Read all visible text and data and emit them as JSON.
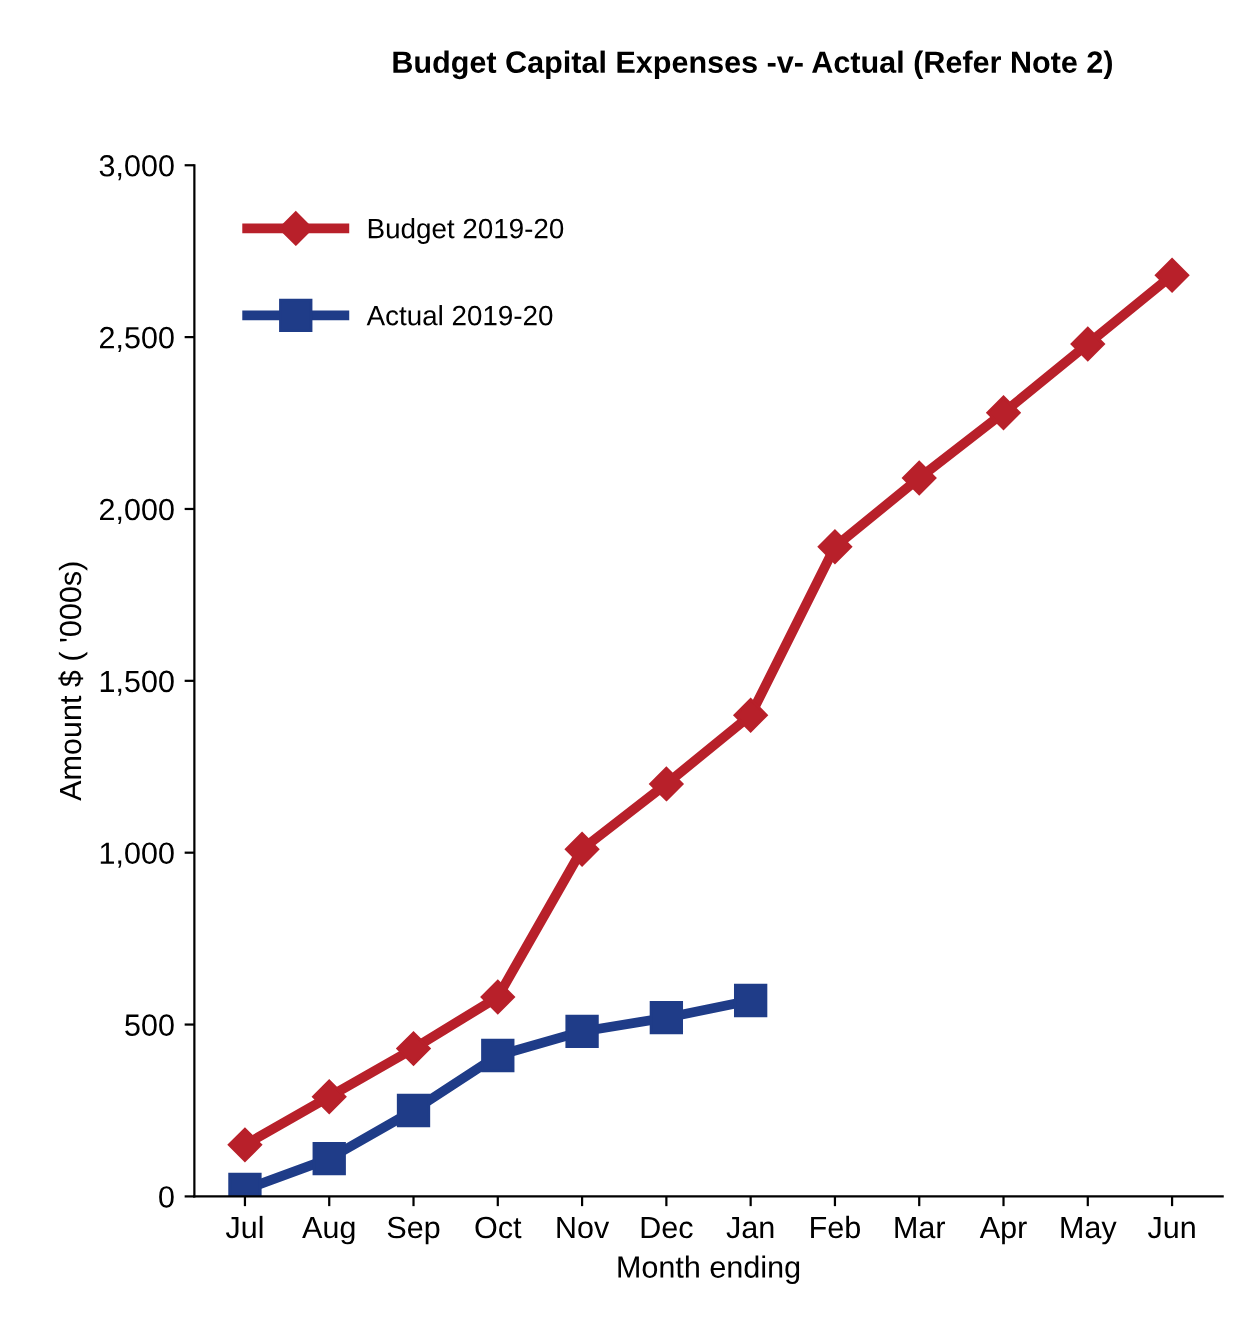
{
  "chart_data": {
    "type": "line",
    "title": "Budget Capital Expenses -v- Actual (Refer Note 2)",
    "xlabel": "Month ending",
    "ylabel": "Amount $ ( '000s)",
    "categories": [
      "Jul",
      "Aug",
      "Sep",
      "Oct",
      "Nov",
      "Dec",
      "Jan",
      "Feb",
      "Mar",
      "Apr",
      "May",
      "Jun"
    ],
    "series": [
      {
        "name": "Budget 2019-20",
        "color": "#b8202a",
        "marker": "diamond",
        "values": [
          150,
          290,
          430,
          580,
          1010,
          1200,
          1400,
          1890,
          2090,
          2280,
          2480,
          2680
        ]
      },
      {
        "name": "Actual 2019-20",
        "color": "#1f3c88",
        "marker": "square",
        "values": [
          20,
          110,
          250,
          410,
          480,
          520,
          570,
          null,
          null,
          null,
          null,
          null
        ]
      }
    ],
    "ylim": [
      0,
      3000
    ],
    "yticks": [
      {
        "value": 0,
        "label": "0"
      },
      {
        "value": 500,
        "label": "500"
      },
      {
        "value": 1000,
        "label": "1,000"
      },
      {
        "value": 1500,
        "label": "1,500"
      },
      {
        "value": 2000,
        "label": "2,000"
      },
      {
        "value": 2500,
        "label": "2,500"
      },
      {
        "value": 3000,
        "label": "3,000"
      }
    ],
    "grid": false,
    "legend": "top left",
    "line_style": "solid"
  }
}
